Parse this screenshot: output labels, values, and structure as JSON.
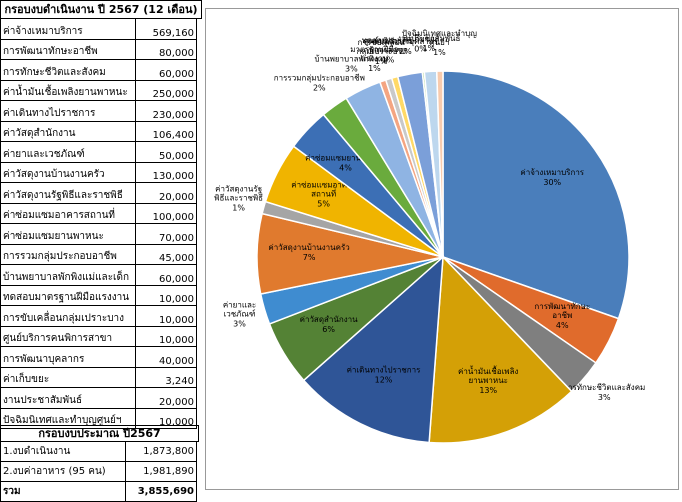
{
  "header": {
    "title": "กรอบงบดำเนินงาน ปี 2567 (12 เดือน)"
  },
  "items": [
    {
      "label": "ค่าจ้างเหมาบริการ",
      "value": "569,160"
    },
    {
      "label": "การพัฒนาทักษะอาชีพ",
      "value": "80,000"
    },
    {
      "label": "การทักษะชีวิตและสังคม",
      "value": "60,000"
    },
    {
      "label": "ค่าน้ำมันเชื้อเพลิงยานพาหนะ",
      "value": "250,000"
    },
    {
      "label": "ค่าเดินทางไปราชการ",
      "value": "230,000"
    },
    {
      "label": "ค่าวัสดุสำนักงาน",
      "value": "106,400"
    },
    {
      "label": "ค่ายาและเวชภัณฑ์",
      "value": "50,000"
    },
    {
      "label": "ค่าวัสดุงานบ้านงานครัว",
      "value": "130,000"
    },
    {
      "label": "ค่าวัสดุงานรัฐพิธีและราชพิธี",
      "value": "20,000"
    },
    {
      "label": "ค่าซ่อมแซมอาคารสถานที่",
      "value": "100,000"
    },
    {
      "label": "ค่าซ่อมแซมยานพาหนะ",
      "value": "70,000"
    },
    {
      "label": "การรวมกลุ่มประกอบอาชีพ",
      "value": "45,000"
    },
    {
      "label": "บ้านพยาบาลพักพิงแม่และเด็ก",
      "value": "60,000"
    },
    {
      "label": "ทดสอบมาตรฐานฝีมือแรงงาน",
      "value": "10,000"
    },
    {
      "label": "การขับเคลื่อนกลุ่มเปราะบาง",
      "value": "10,000"
    },
    {
      "label": "ศูนย์บริการคนพิการสาขา",
      "value": "10,000"
    },
    {
      "label": "การพัฒนาบุคลากร",
      "value": "40,000"
    },
    {
      "label": "ค่าเก็บขยะ",
      "value": "3,240"
    },
    {
      "label": "งานประชาสัมพันธ์",
      "value": "20,000"
    },
    {
      "label": "ปัจฉิมนิเทศและทำบุญศูนย์ฯ",
      "value": "10,000"
    }
  ],
  "budget": {
    "title": "กรอบงบประมาณ ปี2567",
    "rows": [
      {
        "label": "1.งบดำเนินงาน",
        "value": "1,873,800"
      },
      {
        "label": "2.งบค่าอาหาร (95 คน)",
        "value": "1,981,890"
      }
    ],
    "total_label": "รวม",
    "total_value": "3,855,690"
  },
  "chart_data": {
    "type": "pie",
    "start_angle_deg": 0,
    "slices": [
      {
        "label": "ค่าจ้างเหมาบริการ",
        "pct": "30%",
        "value": 569160,
        "color": "#4A7EBB"
      },
      {
        "label": "การพัฒนาทักษะอาชีพ",
        "pct": "4%",
        "value": 80000,
        "color": "#E06B2C"
      },
      {
        "label": "การทักษะชีวิตและสังคม",
        "pct": "3%",
        "value": 60000,
        "color": "#7F7F7F"
      },
      {
        "label": "ค่าน้ำมันเชื้อเพลิงยานพาหนะ",
        "pct": "13%",
        "value": 250000,
        "color": "#D4A006"
      },
      {
        "label": "ค่าเดินทางไปราชการ",
        "pct": "12%",
        "value": 230000,
        "color": "#2F5597"
      },
      {
        "label": "ค่าวัสดุสำนักงาน",
        "pct": "6%",
        "value": 106400,
        "color": "#548235"
      },
      {
        "label": "ค่ายาและเวชภัณฑ์",
        "pct": "3%",
        "value": 50000,
        "color": "#3F8CD0"
      },
      {
        "label": "ค่าวัสดุงานบ้านงานครัว",
        "pct": "7%",
        "value": 130000,
        "color": "#E07A2E"
      },
      {
        "label": "ค่าวัสดุงานรัฐพิธีและราชพิธี",
        "pct": "1%",
        "value": 20000,
        "color": "#A5A5A5"
      },
      {
        "label": "ค่าซ่อมแซมอาคารสถานที่",
        "pct": "5%",
        "value": 100000,
        "color": "#F0B400"
      },
      {
        "label": "ค่าซ่อมแซมยานพาหนะ",
        "pct": "4%",
        "value": 70000,
        "color": "#3C6FB5"
      },
      {
        "label": "การรวมกลุ่มประกอบอาชีพ",
        "pct": "2%",
        "value": 45000,
        "color": "#6AAB3D"
      },
      {
        "label": "บ้านพยาบาลพักพิงแม่และเด็ก",
        "pct": "3%",
        "value": 60000,
        "color": "#8FB4E3"
      },
      {
        "label": "ทดสอบมาตรฐานฝีมือแรงงาน",
        "pct": "1%",
        "value": 10000,
        "color": "#F4A582"
      },
      {
        "label": "การขับเคลื่อนกลุ่มเปราะบาง",
        "pct": "1%",
        "value": 10000,
        "color": "#C9C9C9"
      },
      {
        "label": "ศูนย์บริการคนพิการสาขา",
        "pct": "1%",
        "value": 10000,
        "color": "#FFD966"
      },
      {
        "label": "การพัฒนาบุคลากร",
        "pct": "2%",
        "value": 40000,
        "color": "#7B9FD9"
      },
      {
        "label": "ค่าเก็บขยะ",
        "pct": "0%",
        "value": 3240,
        "color": "#A9D18E"
      },
      {
        "label": "งานประชาสัมพันธ์",
        "pct": "1%",
        "value": 20000,
        "color": "#BDD7EE"
      },
      {
        "label": "ปัจฉิมนิเทศและทำบุญศูนย์ฯ",
        "pct": "1%",
        "value": 10000,
        "color": "#F8CBAD"
      }
    ],
    "label_texts": [
      "ค่าจ้างเหมาบริการ",
      "การพัฒนาทักษะ\nอาชีพ",
      "การทักษะชีวิตและสังคม",
      "ค่าน้ำมันเชื้อเพลิง\nยานพาหนะ",
      "ค่าเดินทางไปราชการ",
      "ค่าวัสดุสำนักงาน",
      "ค่ายาและ\nเวชภัณฑ์",
      "ค่าวัสดุงานบ้านงานครัว",
      "ค่าวัสดุงานรัฐ\nพิธีและราชพิธี",
      "ค่าซ่อมแซมอาคาร\nสถานที่",
      "ค่าซ่อมแซมยานพาหนะ",
      "การรวมกลุ่มประกอบอาชีพ",
      "บ้านพยาบาลพักพิงแม่",
      "ทดสอบ\nมาตรฐานฝีมือ\nแรงงาน",
      "การขับเคลื่อน\nกลุ่มเปราะบาง",
      "ศูนย์บริการคน\nพิการสาขา",
      "การพัฒนาบุคลากร",
      "ค่าเก็บขยะ",
      "งานประชาสัมพันธ์",
      "ปัจฉิมนิเทศและทำบุญ\nศูนย์ฯ"
    ]
  }
}
